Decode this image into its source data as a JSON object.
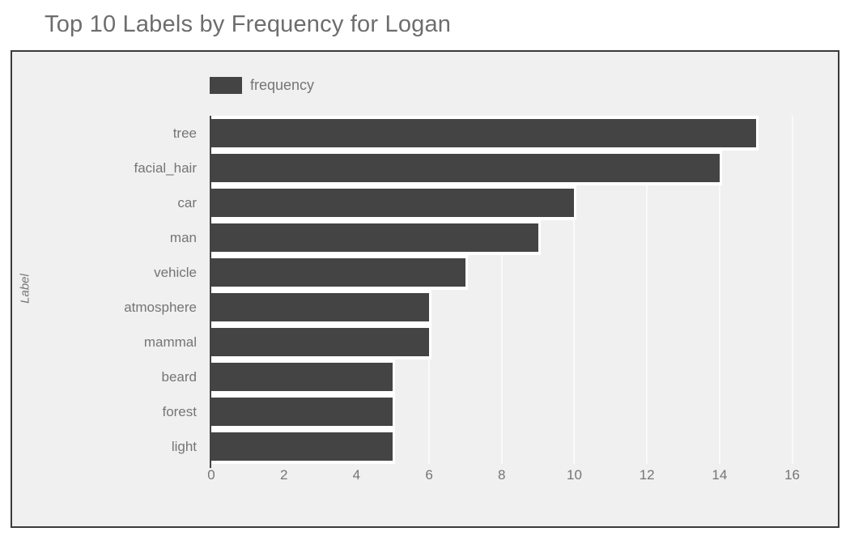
{
  "title": "Top 10 Labels by Frequency for Logan",
  "legend": {
    "label": "frequency",
    "swatch_color": "#444444"
  },
  "colors": {
    "bar": "#444444",
    "plot_background": "#f0f0f0",
    "panel_border": "#3b3b3b",
    "text": "#757575",
    "title_text": "#6d6d6d",
    "gridline": "#fafafa",
    "bar_gap": "#ffffff"
  },
  "chart_data": {
    "type": "bar",
    "orientation": "horizontal",
    "title": "Top 10 Labels by Frequency for Logan",
    "categories": [
      "tree",
      "facial_hair",
      "car",
      "man",
      "vehicle",
      "atmosphere",
      "mammal",
      "beard",
      "forest",
      "light"
    ],
    "series": [
      {
        "name": "frequency",
        "values": [
          15,
          14,
          10,
          9,
          7,
          6,
          6,
          5,
          5,
          5
        ]
      }
    ],
    "xlabel": "",
    "ylabel": "Label",
    "xlim": [
      0,
      16.3
    ],
    "x_ticks": [
      0,
      2,
      4,
      6,
      8,
      10,
      12,
      14,
      16
    ],
    "grid": true,
    "legend_position": "top-left"
  }
}
